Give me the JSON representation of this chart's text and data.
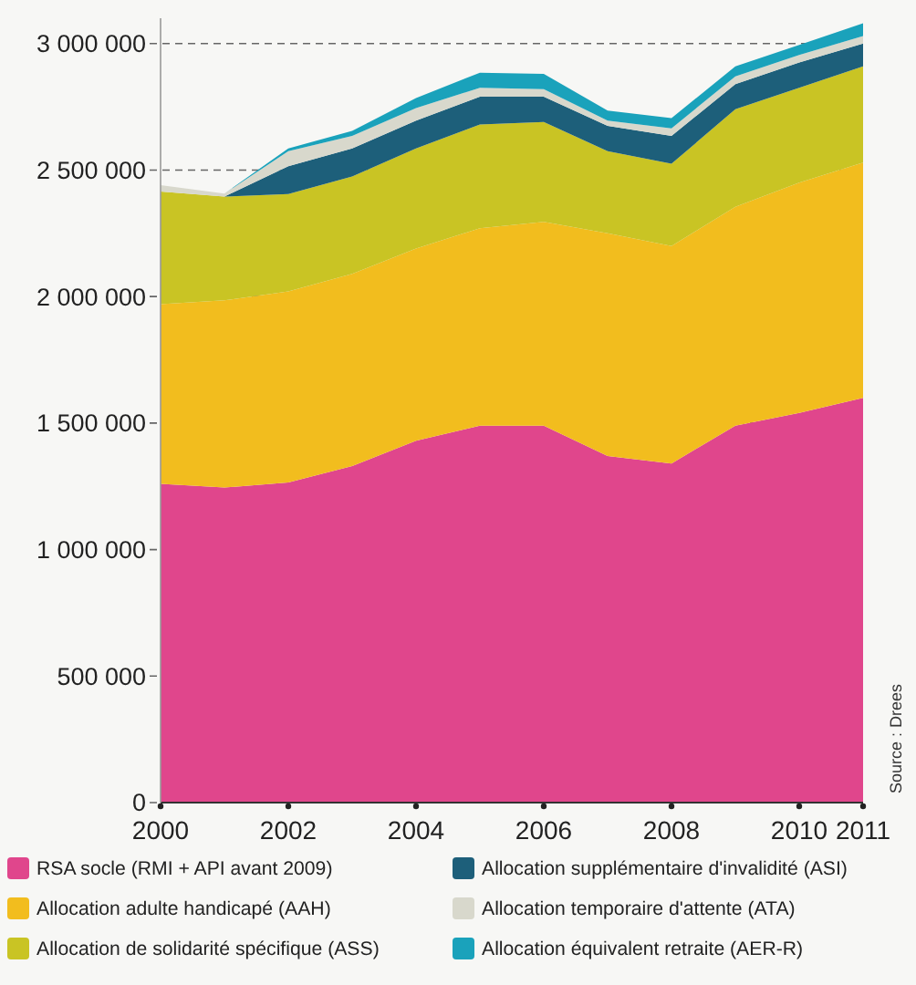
{
  "chart_data": {
    "type": "area",
    "stacked": true,
    "x": [
      2000,
      2001,
      2002,
      2003,
      2004,
      2005,
      2006,
      2007,
      2008,
      2009,
      2010,
      2011
    ],
    "series": [
      {
        "name": "RSA socle (RMI + API avant 2009)",
        "color": "#e0468c",
        "values": [
          1260000,
          1245000,
          1265000,
          1330000,
          1430000,
          1490000,
          1490000,
          1370000,
          1340000,
          1490000,
          1540000,
          1600000
        ]
      },
      {
        "name": "Allocation adulte handicapé (AAH)",
        "color": "#f2bd1e",
        "values": [
          710000,
          740000,
          755000,
          760000,
          760000,
          780000,
          805000,
          880000,
          860000,
          865000,
          910000,
          930000
        ]
      },
      {
        "name": "Allocation de solidarité spécifique (ASS)",
        "color": "#c9c424",
        "values": [
          445000,
          410000,
          385000,
          385000,
          395000,
          410000,
          395000,
          325000,
          325000,
          385000,
          375000,
          380000
        ]
      },
      {
        "name": "Allocation supplémentaire d'invalidité (ASI)",
        "color": "#1d5f7a",
        "values": [
          0,
          0,
          110000,
          110000,
          110000,
          110000,
          100000,
          100000,
          110000,
          100000,
          100000,
          90000
        ]
      },
      {
        "name": "Allocation temporaire d'attente (ATA)",
        "color": "#d8d8cc",
        "values": [
          25000,
          12000,
          60000,
          50000,
          50000,
          35000,
          30000,
          20000,
          30000,
          30000,
          30000,
          30000
        ]
      },
      {
        "name": "Allocation équivalent retraite (AER-R)",
        "color": "#1aa2bb",
        "values": [
          0,
          0,
          10000,
          20000,
          40000,
          60000,
          60000,
          40000,
          40000,
          40000,
          40000,
          50000
        ]
      }
    ],
    "xlim": [
      2000,
      2011
    ],
    "xticks": [
      2000,
      2002,
      2004,
      2006,
      2008,
      2010,
      2011
    ],
    "ylim": [
      0,
      3100000
    ],
    "yticks": [
      0,
      {
        "value": 500000,
        "label": "500 000"
      },
      {
        "value": 1000000,
        "label": "1 000 000"
      },
      {
        "value": 1500000,
        "label": "1 500 000"
      },
      {
        "value": 2000000,
        "label": "2 000 000"
      },
      {
        "value": 2500000,
        "label": "2 500 000"
      },
      {
        "value": 3000000,
        "label": "3 000 000"
      }
    ],
    "grid": "y",
    "legend": "bottom",
    "annotations": [
      "Source : Drees"
    ]
  }
}
